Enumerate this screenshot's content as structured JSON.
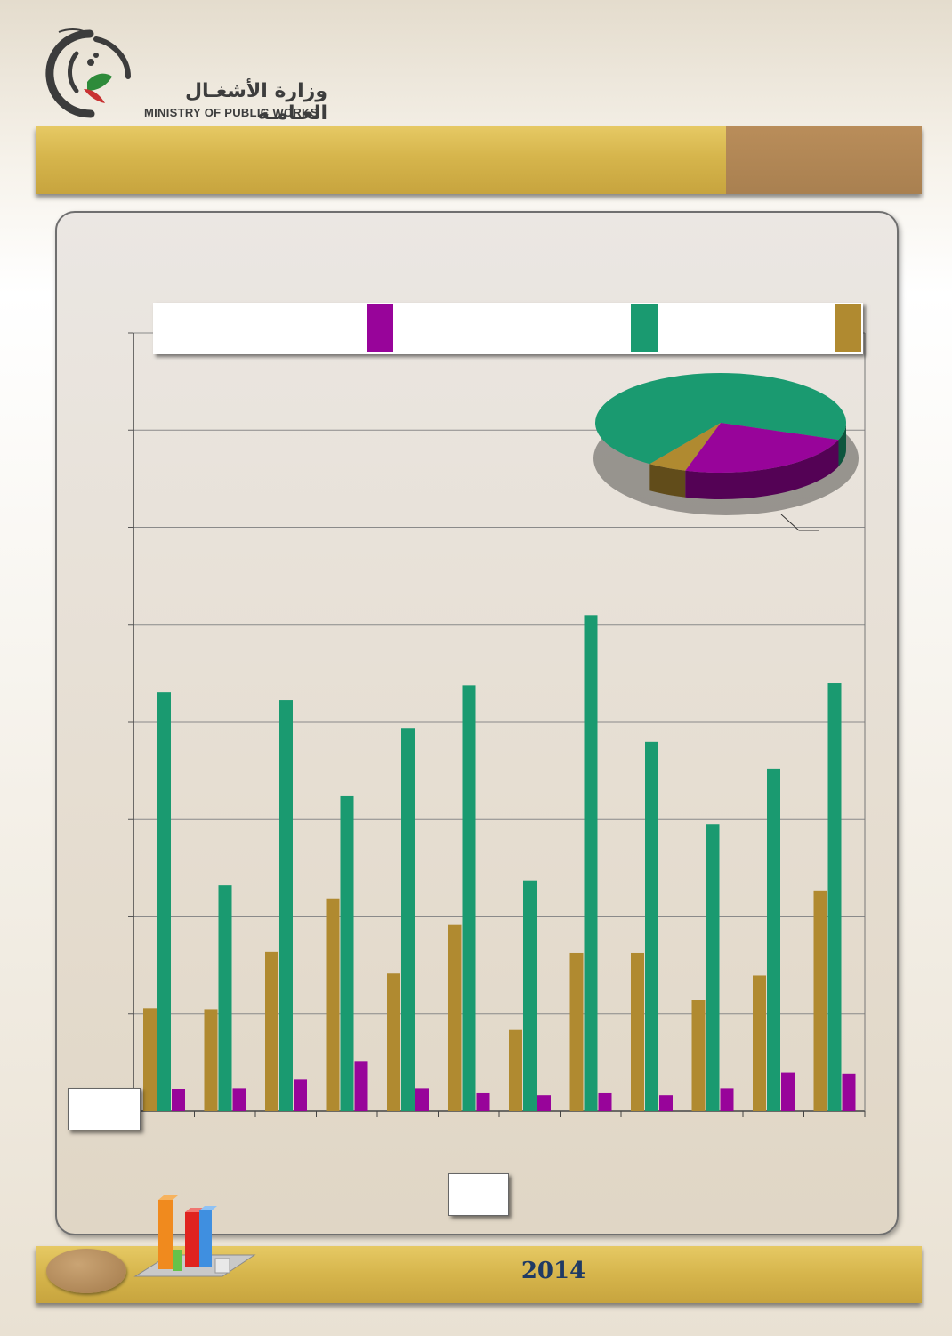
{
  "header": {
    "logo_name_ar": "وزارة الأشغـال العـامـة",
    "logo_name_en": "MINISTRY OF PUBLIC WORKS",
    "brand_colors": [
      "#3c3c3c",
      "#c83232",
      "#2e8b3a"
    ]
  },
  "footer": {
    "year": "2014",
    "icon": "bar-chart-3d-icon"
  },
  "colors": {
    "header_bar": "#d6b54c",
    "header_tab": "#a98050",
    "panel": "#e6ded2"
  },
  "chart_data": [
    {
      "type": "bar",
      "categories": [
        "",
        "",
        "",
        "",
        "",
        "",
        "",
        "",
        "",
        "",
        "",
        ""
      ],
      "ylim": [
        0,
        7.85
      ],
      "grid": true,
      "legend": "top",
      "series": [
        {
          "color": "#b08a30",
          "values": [
            1.03,
            1.02,
            1.6,
            2.14,
            1.39,
            1.88,
            0.82,
            1.59,
            1.59,
            1.12,
            1.37,
            2.22
          ]
        },
        {
          "color": "#1a9a70",
          "values": [
            4.22,
            2.28,
            4.14,
            3.18,
            3.86,
            4.29,
            2.32,
            5.0,
            3.72,
            2.89,
            3.45,
            4.32
          ]
        },
        {
          "color": "#98049a",
          "values": [
            0.22,
            0.23,
            0.32,
            0.5,
            0.23,
            0.18,
            0.16,
            0.18,
            0.16,
            0.23,
            0.39,
            0.37
          ]
        }
      ]
    },
    {
      "type": "pie",
      "series": [
        {
          "color": "#1a9a70",
          "value": 71
        },
        {
          "color": "#98049a",
          "value": 24
        },
        {
          "color": "#b08a30",
          "value": 5
        }
      ]
    }
  ]
}
